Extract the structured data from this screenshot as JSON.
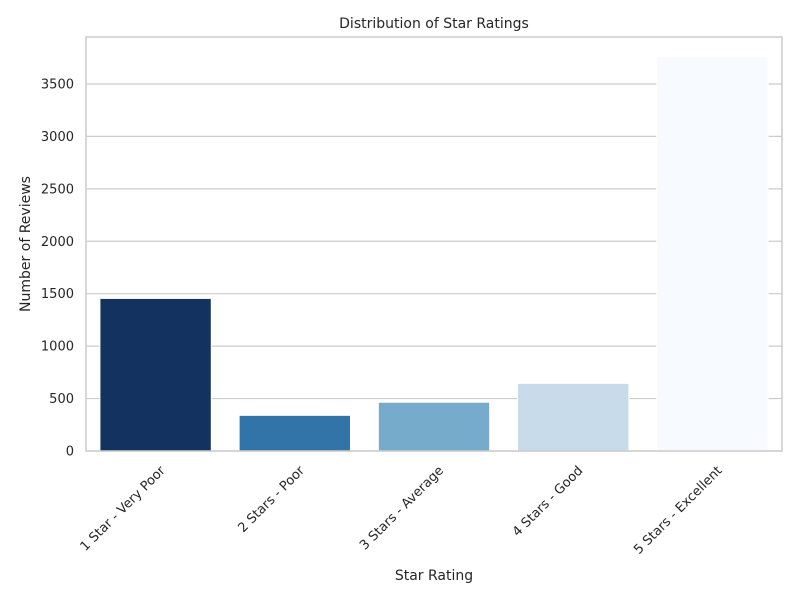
{
  "chart_data": {
    "type": "bar",
    "title": "Distribution of Star Ratings",
    "xlabel": "Star Rating",
    "ylabel": "Number of Reviews",
    "categories": [
      "1 Star - Very Poor",
      "2 Stars - Poor",
      "3 Stars - Average",
      "4 Stars - Good",
      "5 Stars - Excellent"
    ],
    "values": [
      1455,
      340,
      465,
      645,
      3760
    ],
    "colors": [
      "#14325f",
      "#3274a8",
      "#77abcb",
      "#c8dbea",
      "#f7fbff"
    ],
    "yticks": [
      0,
      500,
      1000,
      1500,
      2000,
      2500,
      3000,
      3500
    ],
    "ylim": [
      0,
      3948
    ],
    "grid": true,
    "legend": "none"
  }
}
